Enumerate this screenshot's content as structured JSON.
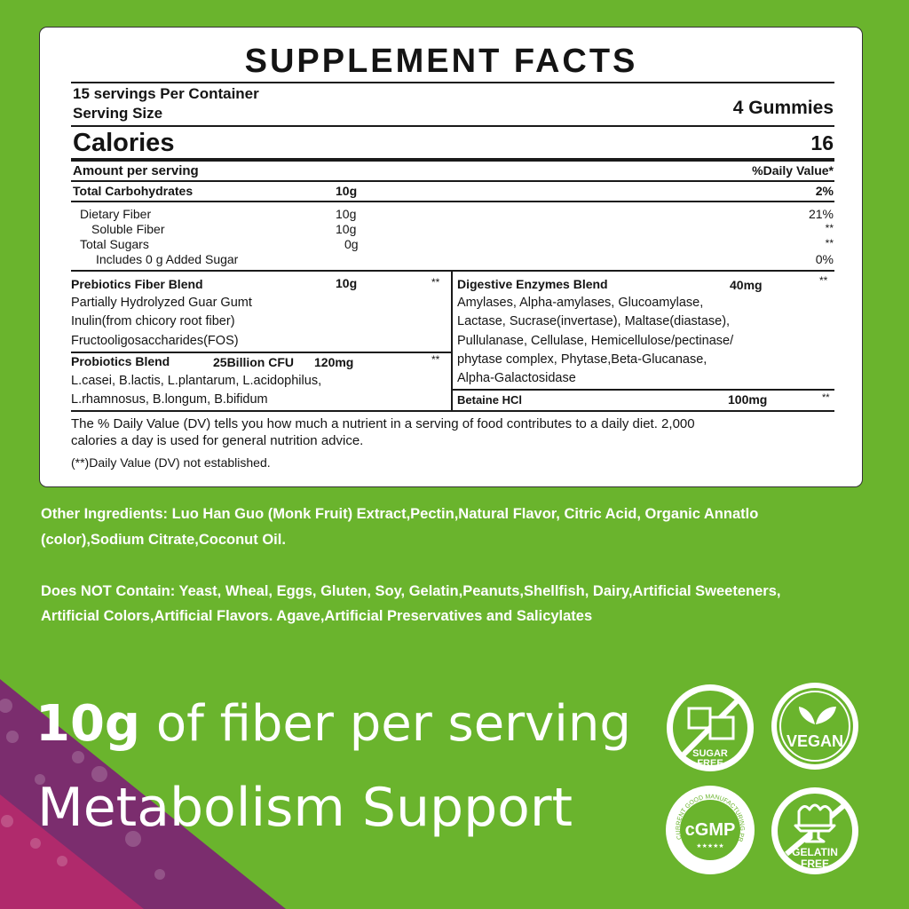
{
  "colors": {
    "background": "#6ab42d",
    "purple": "#7b2d6e",
    "magenta": "#b02a6c",
    "panel": "#ffffff",
    "text": "#141414"
  },
  "facts": {
    "title": "SUPPLEMENT FACTS",
    "servings_per_container": "15 servings Per Container",
    "serving_size_label": "Serving Size",
    "serving_size_value": "4 Gummies",
    "calories_label": "Calories",
    "calories_value": "16",
    "amount_per_serving": "Amount per serving",
    "daily_value_header": "%Daily Value*",
    "rows": [
      {
        "name": "Total Carbohydrates",
        "amount": "10g",
        "dv": "2%"
      },
      {
        "name": "Dietary Fiber",
        "amount": "10g",
        "dv": "21%"
      },
      {
        "name": "Soluble Fiber",
        "amount": "10g",
        "dv": "**"
      },
      {
        "name": "Total Sugars",
        "amount": "0g",
        "dv": "**"
      },
      {
        "name": "Includes 0 g Added Sugar",
        "amount": "",
        "dv": "0%"
      }
    ],
    "prebiotics": {
      "name": "Prebiotics Fiber Blend",
      "amount": "10g",
      "dv": "**",
      "lines": [
        "Partially Hydrolyzed Guar Gumt",
        "Inulin(from chicory root fiber)",
        "Fructooligosaccharides(FOS)"
      ]
    },
    "probiotics": {
      "name": "Probiotics Blend",
      "cfu": "25Billion CFU",
      "amount": "120mg",
      "dv": "**",
      "lines": [
        "L.casei, B.lactis, L.plantarum, L.acidophilus,",
        "L.rhamnosus, B.longum, B.bifidum"
      ]
    },
    "enzymes": {
      "name": "Digestive Enzymes Blend",
      "amount": "40mg",
      "dv": "**",
      "lines": [
        "Amylases, Alpha-amylases, Glucoamylase,",
        "Lactase, Sucrase(invertase), Maltase(diastase),",
        "Pullulanase, Cellulase, Hemicellulose/pectinase/",
        "phytase complex, Phytase,Beta-Glucanase,",
        "Alpha-Galactosidase"
      ]
    },
    "betaine": {
      "name": "Betaine HCl",
      "amount": "100mg",
      "dv": "**"
    },
    "footnote_1": "The % Daily Value (DV) tells you how much a nutrient in a serving of food contributes to a daily diet. 2,000",
    "footnote_2": "calories a day is used for general nutrition advice.",
    "footnote_3": "(**)Daily Value (DV) not established."
  },
  "other_ingredients": [
    "Other Ingredients: Luo Han Guo (Monk Fruit) Extract,Pectin,Natural Flavor, Citric Acid, Organic Annatlo",
    "(color),Sodium Citrate,Coconut Oil."
  ],
  "does_not_contain": [
    "Does NOT Contain: Yeast, Wheal, Eggs, Gluten, Soy, Gelatin,Peanuts,Shellfish, Dairy,Artificial Sweeteners,",
    "Artificial Colors,Artificial Flavors. Agave,Artificial Preservatives and Salicylates"
  ],
  "headline": {
    "bold": "10g",
    "rest": " of fiber per serving",
    "line2": "Metabolism Support"
  },
  "badges": {
    "sugar_free": [
      "SUGAR",
      "FREE"
    ],
    "vegan": "VEGAN",
    "cgmp": "cGMP",
    "cgmp_ring": "CURRENT GOOD MANUFACTURING PRACTICE",
    "cgmp_stars": "★★★★★",
    "gelatin_free": [
      "GELATIN",
      "FREE"
    ]
  }
}
